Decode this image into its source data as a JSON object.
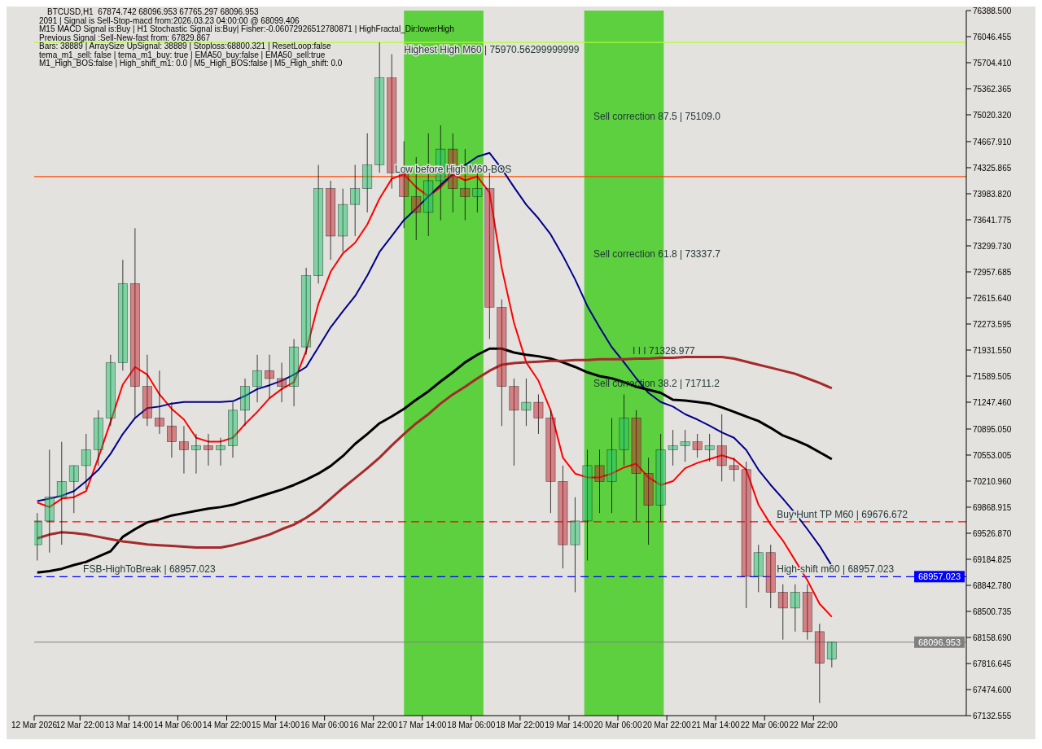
{
  "chart_data": {
    "type": "candlestick",
    "title": "BTCUSD,H1  67874.742 68096.953 67765.297 68096.953",
    "x": [
      "2026-03-12T08:00",
      "2026-03-12T12:00",
      "2026-03-12T16:00",
      "2026-03-12T20:00",
      "2026-03-13T00:00",
      "2026-03-13T04:00",
      "2026-03-13T08:00",
      "2026-03-13T12:00",
      "2026-03-13T16:00",
      "2026-03-13T20:00",
      "2026-03-14T00:00",
      "2026-03-14T04:00",
      "2026-03-14T08:00",
      "2026-03-14T12:00",
      "2026-03-14T16:00",
      "2026-03-14T20:00",
      "2026-03-15T00:00",
      "2026-03-15T04:00",
      "2026-03-15T08:00",
      "2026-03-15T12:00",
      "2026-03-15T16:00",
      "2026-03-15T20:00",
      "2026-03-16T00:00",
      "2026-03-16T04:00",
      "2026-03-16T08:00",
      "2026-03-16T12:00",
      "2026-03-16T16:00",
      "2026-03-16T20:00",
      "2026-03-17T00:00",
      "2026-03-17T04:00",
      "2026-03-17T08:00",
      "2026-03-17T12:00",
      "2026-03-17T16:00",
      "2026-03-17T20:00",
      "2026-03-18T00:00",
      "2026-03-18T04:00",
      "2026-03-18T08:00",
      "2026-03-18T12:00",
      "2026-03-18T16:00",
      "2026-03-18T20:00",
      "2026-03-19T00:00",
      "2026-03-19T04:00",
      "2026-03-19T08:00",
      "2026-03-19T12:00",
      "2026-03-19T16:00",
      "2026-03-19T20:00",
      "2026-03-20T00:00",
      "2026-03-20T04:00",
      "2026-03-20T08:00",
      "2026-03-20T12:00",
      "2026-03-20T16:00",
      "2026-03-20T20:00",
      "2026-03-21T00:00",
      "2026-03-21T04:00",
      "2026-03-21T08:00",
      "2026-03-21T12:00",
      "2026-03-21T16:00",
      "2026-03-21T20:00",
      "2026-03-22T00:00",
      "2026-03-22T04:00",
      "2026-03-22T08:00",
      "2026-03-22T12:00",
      "2026-03-22T16:00",
      "2026-03-22T20:00",
      "2026-03-23T00:00",
      "2026-03-23T04:00"
    ],
    "ohlc": [
      [
        69376,
        69792,
        69169,
        69688
      ],
      [
        69688,
        70623,
        69273,
        70000
      ],
      [
        70000,
        70727,
        69376,
        70207
      ],
      [
        70207,
        70415,
        69792,
        70415
      ],
      [
        70415,
        70831,
        70103,
        70623
      ],
      [
        70623,
        71142,
        70415,
        71039
      ],
      [
        71039,
        71870,
        70935,
        71766
      ],
      [
        71766,
        73116,
        71662,
        72805
      ],
      [
        72805,
        73532,
        71039,
        71454
      ],
      [
        71454,
        71870,
        70935,
        71039
      ],
      [
        71039,
        71662,
        70831,
        70935
      ],
      [
        70935,
        71246,
        70519,
        70727
      ],
      [
        70727,
        70935,
        70311,
        70623
      ],
      [
        70623,
        70831,
        70311,
        70675
      ],
      [
        70675,
        70831,
        70415,
        70623
      ],
      [
        70623,
        70779,
        70415,
        70675
      ],
      [
        70675,
        71246,
        70519,
        71142
      ],
      [
        71142,
        71558,
        70935,
        71454
      ],
      [
        71454,
        71870,
        71246,
        71662
      ],
      [
        71662,
        71870,
        71298,
        71558
      ],
      [
        71558,
        71766,
        71246,
        71454
      ],
      [
        71454,
        72077,
        71194,
        71973
      ],
      [
        71973,
        73012,
        71870,
        72908
      ],
      [
        72908,
        74363,
        72805,
        74051
      ],
      [
        74051,
        74155,
        73116,
        73428
      ],
      [
        73428,
        74051,
        73220,
        73843
      ],
      [
        73843,
        74363,
        73428,
        74051
      ],
      [
        74051,
        74778,
        73739,
        74363
      ],
      [
        74363,
        75970,
        74259,
        75505
      ],
      [
        75505,
        75817,
        74051,
        74259
      ],
      [
        74259,
        74674,
        73532,
        73947
      ],
      [
        73947,
        74466,
        73376,
        73739
      ],
      [
        73739,
        74778,
        73428,
        74155
      ],
      [
        74155,
        74882,
        73636,
        74570
      ],
      [
        74570,
        74778,
        73739,
        74051
      ],
      [
        74051,
        74570,
        73636,
        73947
      ],
      [
        73947,
        74363,
        73739,
        74051
      ],
      [
        74051,
        74259,
        72077,
        72493
      ],
      [
        72493,
        72597,
        70935,
        71454
      ],
      [
        71454,
        71558,
        70415,
        71142
      ],
      [
        71142,
        71558,
        70935,
        71246
      ],
      [
        71246,
        71350,
        70831,
        71039
      ],
      [
        71039,
        71142,
        69792,
        70207
      ],
      [
        70207,
        70415,
        69065,
        69376
      ],
      [
        69376,
        70000,
        68753,
        69688
      ],
      [
        69688,
        70623,
        69169,
        70415
      ],
      [
        70415,
        70623,
        69792,
        70207
      ],
      [
        70207,
        71039,
        69792,
        70623
      ],
      [
        70623,
        71350,
        70415,
        71039
      ],
      [
        71039,
        71142,
        69688,
        70311
      ],
      [
        70311,
        70519,
        69376,
        69896
      ],
      [
        69896,
        70831,
        69688,
        70623
      ],
      [
        70623,
        70883,
        70415,
        70675
      ],
      [
        70675,
        70883,
        70467,
        70727
      ],
      [
        70727,
        70831,
        70519,
        70623
      ],
      [
        70623,
        70831,
        70467,
        70675
      ],
      [
        70675,
        71090,
        70207,
        70415
      ],
      [
        70415,
        70519,
        70207,
        70363
      ],
      [
        70363,
        70467,
        68545,
        68961
      ],
      [
        68961,
        69376,
        68753,
        69273
      ],
      [
        69273,
        69376,
        68545,
        68753
      ],
      [
        68753,
        68857,
        68130,
        68545
      ],
      [
        68545,
        68857,
        68235,
        68753
      ],
      [
        68753,
        68857,
        68130,
        68235
      ],
      [
        68235,
        68339,
        67299,
        67820
      ],
      [
        67874.742,
        68096.953,
        67765.297,
        68096.953
      ]
    ],
    "series": [
      {
        "type": "line",
        "color": "#ff0000",
        "values": [
          69930,
          69870,
          69980,
          70000,
          70080,
          70520,
          70990,
          71480,
          71710,
          71610,
          71350,
          71160,
          71020,
          70780,
          70730,
          70730,
          70780,
          70960,
          71120,
          71300,
          71420,
          71510,
          71920,
          72540,
          72960,
          73200,
          73340,
          73580,
          73920,
          74180,
          74240,
          74070,
          73950,
          74070,
          74240,
          74160,
          74210,
          74000,
          73010,
          72290,
          71770,
          71530,
          71140,
          70520,
          70310,
          70260,
          70260,
          70310,
          70390,
          70440,
          70260,
          70160,
          70210,
          70380,
          70450,
          70500,
          70550,
          70500,
          70360,
          69900,
          69640,
          69430,
          69170,
          68910,
          68600,
          68430
        ]
      },
      {
        "type": "line",
        "color": "#00008b",
        "values": [
          69950,
          69980,
          70020,
          70080,
          70210,
          70360,
          70570,
          70830,
          71040,
          71170,
          71190,
          71230,
          71250,
          71250,
          71250,
          71250,
          71260,
          71330,
          71420,
          71470,
          71530,
          71610,
          71710,
          71970,
          72230,
          72440,
          72640,
          72910,
          73220,
          73430,
          73640,
          73790,
          73950,
          74100,
          74240,
          74360,
          74470,
          74520,
          74310,
          74070,
          73840,
          73660,
          73450,
          73170,
          72860,
          72510,
          72230,
          71970,
          71770,
          71560,
          71370,
          71250,
          71190,
          71090,
          71020,
          70940,
          70850,
          70780,
          70620,
          70360,
          70160,
          69980,
          69790,
          69580,
          69360,
          69100
        ]
      },
      {
        "type": "line",
        "color": "#000000",
        "values": [
          69010,
          69030,
          69060,
          69110,
          69150,
          69220,
          69290,
          69480,
          69580,
          69670,
          69710,
          69760,
          69790,
          69820,
          69850,
          69870,
          69900,
          69950,
          70000,
          70050,
          70100,
          70160,
          70230,
          70310,
          70410,
          70540,
          70700,
          70830,
          70970,
          71060,
          71160,
          71280,
          71390,
          71520,
          71640,
          71770,
          71870,
          71950,
          71950,
          71900,
          71870,
          71850,
          71820,
          71770,
          71710,
          71640,
          71590,
          71560,
          71510,
          71450,
          71410,
          71370,
          71280,
          71270,
          71250,
          71230,
          71180,
          71120,
          71060,
          71000,
          70910,
          70810,
          70750,
          70680,
          70590,
          70500
        ]
      },
      {
        "type": "line",
        "color": "#a52a2a",
        "values": [
          69460,
          69510,
          69540,
          69530,
          69510,
          69480,
          69450,
          69420,
          69400,
          69380,
          69370,
          69360,
          69350,
          69340,
          69340,
          69340,
          69370,
          69410,
          69460,
          69510,
          69580,
          69640,
          69730,
          69840,
          69980,
          70120,
          70250,
          70380,
          70520,
          70680,
          70830,
          70970,
          71090,
          71230,
          71350,
          71450,
          71560,
          71660,
          71740,
          71760,
          71770,
          71780,
          71790,
          71790,
          71800,
          71800,
          71810,
          71810,
          71810,
          71820,
          71820,
          71830,
          71830,
          71840,
          71840,
          71840,
          71840,
          71820,
          71780,
          71740,
          71700,
          71660,
          71620,
          71560,
          71500,
          71430
        ]
      }
    ],
    "xlim": [
      "2026-03-12T07:00",
      "2026-03-25T00:00"
    ],
    "xticks": [
      {
        "value": "2026-03-12T07:00",
        "label": "12 Mar 2026"
      },
      {
        "value": "2026-03-12T22:00",
        "label": "12 Mar 22:00"
      },
      {
        "value": "2026-03-13T14:00",
        "label": "13 Mar 14:00"
      },
      {
        "value": "2026-03-14T06:00",
        "label": "14 Mar 06:00"
      },
      {
        "value": "2026-03-14T22:00",
        "label": "14 Mar 22:00"
      },
      {
        "value": "2026-03-15T14:00",
        "label": "15 Mar 14:00"
      },
      {
        "value": "2026-03-16T06:00",
        "label": "16 Mar 06:00"
      },
      {
        "value": "2026-03-16T22:00",
        "label": "16 Mar 22:00"
      },
      {
        "value": "2026-03-17T14:00",
        "label": "17 Mar 14:00"
      },
      {
        "value": "2026-03-18T06:00",
        "label": "18 Mar 06:00"
      },
      {
        "value": "2026-03-18T22:00",
        "label": "18 Mar 22:00"
      },
      {
        "value": "2026-03-19T14:00",
        "label": "19 Mar 14:00"
      },
      {
        "value": "2026-03-20T06:00",
        "label": "20 Mar 06:00"
      },
      {
        "value": "2026-03-20T22:00",
        "label": "20 Mar 22:00"
      },
      {
        "value": "2026-03-21T14:00",
        "label": "21 Mar 14:00"
      },
      {
        "value": "2026-03-22T06:00",
        "label": "22 Mar 06:00"
      },
      {
        "value": "2026-03-22T22:00",
        "label": "22 Mar 22:00"
      }
    ],
    "ylim": [
      67132.555,
      76388.5
    ],
    "yticks": [
      {
        "value": 67132.555,
        "label": "67132.555"
      },
      {
        "value": 67474.6,
        "label": "67474.600"
      },
      {
        "value": 67816.645,
        "label": "67816.645"
      },
      {
        "value": 68158.69,
        "label": "68158.690"
      },
      {
        "value": 68500.735,
        "label": "68500.735"
      },
      {
        "value": 68842.78,
        "label": "68842.780"
      },
      {
        "value": 69184.825,
        "label": "69184.825"
      },
      {
        "value": 69526.87,
        "label": "69526.870"
      },
      {
        "value": 69868.915,
        "label": "69868.915"
      },
      {
        "value": 70210.96,
        "label": "70210.960"
      },
      {
        "value": 70553.005,
        "label": "70553.005"
      },
      {
        "value": 70895.05,
        "label": "70895.050"
      },
      {
        "value": 71247.46,
        "label": "71247.460"
      },
      {
        "value": 71589.505,
        "label": "71589.505"
      },
      {
        "value": 71931.55,
        "label": "71931.550"
      },
      {
        "value": 72273.595,
        "label": "72273.595"
      },
      {
        "value": 72615.64,
        "label": "72615.640"
      },
      {
        "value": 72957.685,
        "label": "72957.685"
      },
      {
        "value": 73299.73,
        "label": "73299.730"
      },
      {
        "value": 73641.775,
        "label": "73641.775"
      },
      {
        "value": 73983.82,
        "label": "73983.820"
      },
      {
        "value": 74325.865,
        "label": "74325.865"
      },
      {
        "value": 74667.91,
        "label": "74667.910"
      },
      {
        "value": 75020.32,
        "label": "75020.320"
      },
      {
        "value": 75362.365,
        "label": "75362.365"
      },
      {
        "value": 75704.41,
        "label": "75704.410"
      },
      {
        "value": 76046.455,
        "label": "76046.455"
      },
      {
        "value": 76388.5,
        "label": "76388.500"
      }
    ],
    "bands": [
      {
        "axis": "x",
        "from": "2026-03-17T08:00",
        "to": "2026-03-18T10:00",
        "color": "#44cc22"
      },
      {
        "axis": "x",
        "from": "2026-03-19T19:00",
        "to": "2026-03-20T21:00",
        "color": "#44cc22"
      }
    ],
    "ref_lines": [
      {
        "axis": "y",
        "value": 75970.563,
        "color": "#adff2f"
      },
      {
        "axis": "y",
        "value": 74210,
        "color": "#ff4500"
      },
      {
        "axis": "y",
        "value": 69676.672,
        "color": "#ff0000",
        "line_style": "dashed"
      },
      {
        "axis": "y",
        "value": 68957.023,
        "label": "68957.023",
        "color": "#0000ff",
        "line_style": "dashed"
      },
      {
        "axis": "y",
        "value": 68096.953,
        "label": "68096.953",
        "color": "#808080"
      }
    ],
    "annotations": [
      "2091 | Signal is Sell-Stop-macd from:2026.03.23 04:00:00 @ 68099.406",
      "M15 MACD Signal is:Buy | H1 Stochastic Signal is:Buy| Fisher:-0.06072926512780871 | HighFractal_Dir:lowerHigh",
      "Previous Signal :Sell-New-fast from: 67829.867",
      "Bars: 38889 | ArraySize UpSignal: 38889 | Stoploss:68800.321 | ResetLoop:false",
      "tema_m1_sell: false | tema_m1_buy: true | EMA50_buy:false | EMA50_sell:true",
      "M1_High_BOS:false | High_shift_m1: 0.0 | M5_High_BOS:false | M5_High_shift: 0.0",
      {
        "text": "Highest High M60 | 75970.56299999999",
        "x": "2026-03-17T08:00",
        "y": 75970.563
      },
      {
        "text": "Low before High M60-BOS",
        "x": "2026-03-17T05:00",
        "y": 74210
      },
      "Sell correction 87.5 | 75109.0",
      "Sell correction 61.8 | 73337.7",
      "I I I 71328.977",
      "Sell correction 38.2 | 71711.2",
      {
        "text": "Buy Hunt TP M60 | 69676.672",
        "x": "2026-03-22T10:00",
        "y": 69676.672
      },
      {
        "text": "High-shift m60 | 68957.023",
        "x": "2026-03-22T10:00",
        "y": 68957.023
      },
      {
        "text": "FSB-HighToBreak | 68957.023",
        "x": "2026-03-12T23:00",
        "y": 68957.023
      }
    ]
  }
}
